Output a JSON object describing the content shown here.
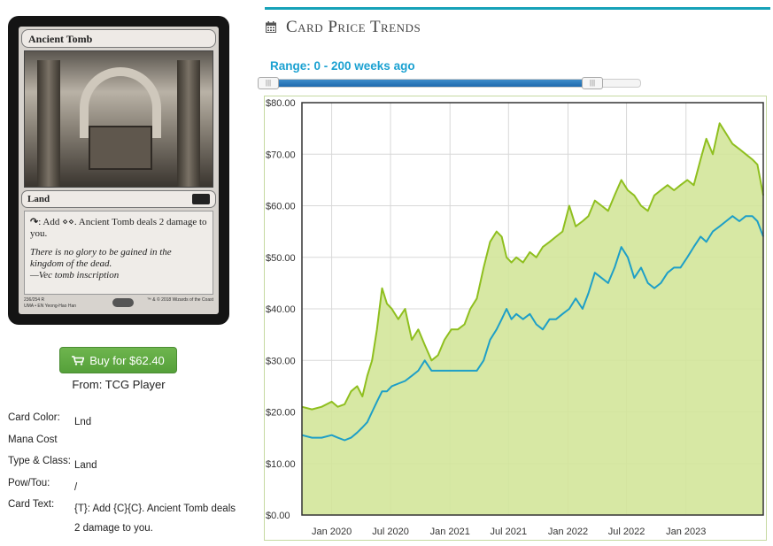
{
  "card": {
    "name": "Ancient Tomb",
    "type_line": "Land",
    "rules_text": ": Add ⋄⋄. Ancient Tomb deals 2 damage to you.",
    "flavor_text": "There is no glory to be gained in the kingdom of the dead.",
    "flavor_attribution": "—Vec tomb inscription",
    "collector_number": "236/254 R",
    "set_line": "UMA • EN",
    "artist": "Yeong-Hao Han",
    "copyright": "™ & © 2018 Wizards of the Coast"
  },
  "buy": {
    "label": "Buy for $62.40",
    "from": "From: TCG Player"
  },
  "details": [
    {
      "label": "Card Color:",
      "value": "Lnd"
    },
    {
      "label": "Mana Cost",
      "value": ""
    },
    {
      "label": "Type & Class:",
      "value": "Land"
    },
    {
      "label": "Pow/Tou:",
      "value": "/"
    },
    {
      "label": "Card Text:",
      "value": "{T}: Add {C}{C}. Ancient Tomb deals 2 damage to you."
    }
  ],
  "header": {
    "title": "Card Price Trends",
    "range_label": "Range: 0 - 200 weeks ago"
  },
  "colors": {
    "accent": "#17a2b8",
    "series_retail": "#8fbf1f",
    "series_buylist": "#1e9fc7",
    "area_fill": "#d3e59a"
  },
  "chart_data": {
    "type": "line",
    "title": "",
    "xlabel": "",
    "ylabel": "",
    "ylim": [
      0,
      80
    ],
    "y_ticks": [
      "$0.00",
      "$10.00",
      "$20.00",
      "$30.00",
      "$40.00",
      "$50.00",
      "$60.00",
      "$70.00",
      "$80.00"
    ],
    "x_ticks": [
      "Jan 2020",
      "Jul 2020",
      "Jan 2021",
      "Jul 2021",
      "Jan 2022",
      "Jul 2022",
      "Jan 2023"
    ],
    "x_tick_dates": [
      "2020-01-01",
      "2020-07-01",
      "2021-01-01",
      "2021-07-01",
      "2022-01-01",
      "2022-07-01",
      "2023-01-01"
    ],
    "xlim": [
      "2019-10-01",
      "2023-08-28"
    ],
    "grid": true,
    "series": [
      {
        "x": [
          "2019-10-01",
          "2019-11-01",
          "2019-12-01",
          "2020-01-01",
          "2020-01-20",
          "2020-02-10",
          "2020-03-01",
          "2020-03-20",
          "2020-04-05",
          "2020-04-20",
          "2020-05-05",
          "2020-05-20",
          "2020-06-05",
          "2020-06-20",
          "2020-07-05",
          "2020-07-25",
          "2020-08-15",
          "2020-09-05",
          "2020-09-25",
          "2020-10-15",
          "2020-11-05",
          "2020-11-25",
          "2020-12-15",
          "2021-01-05",
          "2021-01-25",
          "2021-02-15",
          "2021-03-05",
          "2021-03-25",
          "2021-04-15",
          "2021-05-05",
          "2021-05-25",
          "2021-06-10",
          "2021-06-25",
          "2021-07-10",
          "2021-07-25",
          "2021-08-15",
          "2021-09-05",
          "2021-09-25",
          "2021-10-15",
          "2021-11-05",
          "2021-11-25",
          "2021-12-15",
          "2022-01-05",
          "2022-01-25",
          "2022-02-15",
          "2022-03-05",
          "2022-03-25",
          "2022-04-15",
          "2022-05-05",
          "2022-05-25",
          "2022-06-15",
          "2022-07-05",
          "2022-07-25",
          "2022-08-15",
          "2022-09-05",
          "2022-09-25",
          "2022-10-15",
          "2022-11-05",
          "2022-11-25",
          "2022-12-15",
          "2023-01-05",
          "2023-01-25",
          "2023-02-15",
          "2023-03-05",
          "2023-03-25",
          "2023-04-15",
          "2023-05-05",
          "2023-05-25",
          "2023-06-15",
          "2023-07-05",
          "2023-07-25",
          "2023-08-10",
          "2023-08-28"
        ],
        "values": [
          21,
          20.5,
          21,
          22,
          21,
          21.5,
          24,
          25,
          23,
          27,
          30,
          36,
          44,
          41,
          40,
          38,
          40,
          34,
          36,
          33,
          30,
          31,
          34,
          36,
          36,
          37,
          40,
          42,
          48,
          53,
          55,
          54,
          50,
          49,
          50,
          49,
          51,
          50,
          52,
          53,
          54,
          55,
          60,
          56,
          57,
          58,
          61,
          60,
          59,
          62,
          65,
          63,
          62,
          60,
          59,
          62,
          63,
          64,
          63,
          64,
          65,
          64,
          69,
          73,
          70,
          76,
          74,
          72,
          71,
          70,
          69,
          68,
          62
        ]
      },
      {
        "x": [
          "2019-10-01",
          "2019-11-01",
          "2019-12-01",
          "2020-01-01",
          "2020-01-20",
          "2020-02-10",
          "2020-03-01",
          "2020-03-20",
          "2020-04-05",
          "2020-04-20",
          "2020-05-05",
          "2020-05-20",
          "2020-06-05",
          "2020-06-20",
          "2020-07-05",
          "2020-07-25",
          "2020-08-15",
          "2020-09-05",
          "2020-09-25",
          "2020-10-15",
          "2020-11-05",
          "2020-11-25",
          "2020-12-15",
          "2021-01-05",
          "2021-01-25",
          "2021-02-15",
          "2021-03-05",
          "2021-03-25",
          "2021-04-15",
          "2021-05-05",
          "2021-05-25",
          "2021-06-10",
          "2021-06-25",
          "2021-07-10",
          "2021-07-25",
          "2021-08-15",
          "2021-09-05",
          "2021-09-25",
          "2021-10-15",
          "2021-11-05",
          "2021-11-25",
          "2021-12-15",
          "2022-01-05",
          "2022-01-25",
          "2022-02-15",
          "2022-03-05",
          "2022-03-25",
          "2022-04-15",
          "2022-05-05",
          "2022-05-25",
          "2022-06-15",
          "2022-07-05",
          "2022-07-25",
          "2022-08-15",
          "2022-09-05",
          "2022-09-25",
          "2022-10-15",
          "2022-11-05",
          "2022-11-25",
          "2022-12-15",
          "2023-01-05",
          "2023-01-25",
          "2023-02-15",
          "2023-03-05",
          "2023-03-25",
          "2023-04-15",
          "2023-05-05",
          "2023-05-25",
          "2023-06-15",
          "2023-07-05",
          "2023-07-25",
          "2023-08-10",
          "2023-08-28"
        ],
        "values": [
          15.5,
          15,
          15,
          15.5,
          15,
          14.5,
          15,
          16,
          17,
          18,
          20,
          22,
          24,
          24,
          25,
          25.5,
          26,
          27,
          28,
          30,
          28,
          28,
          28,
          28,
          28,
          28,
          28,
          28,
          30,
          34,
          36,
          38,
          40,
          38,
          39,
          38,
          39,
          37,
          36,
          38,
          38,
          39,
          40,
          42,
          40,
          43,
          47,
          46,
          45,
          48,
          52,
          50,
          46,
          48,
          45,
          44,
          45,
          47,
          48,
          48,
          50,
          52,
          54,
          53,
          55,
          56,
          57,
          58,
          57,
          58,
          58,
          57,
          54
        ]
      }
    ]
  }
}
